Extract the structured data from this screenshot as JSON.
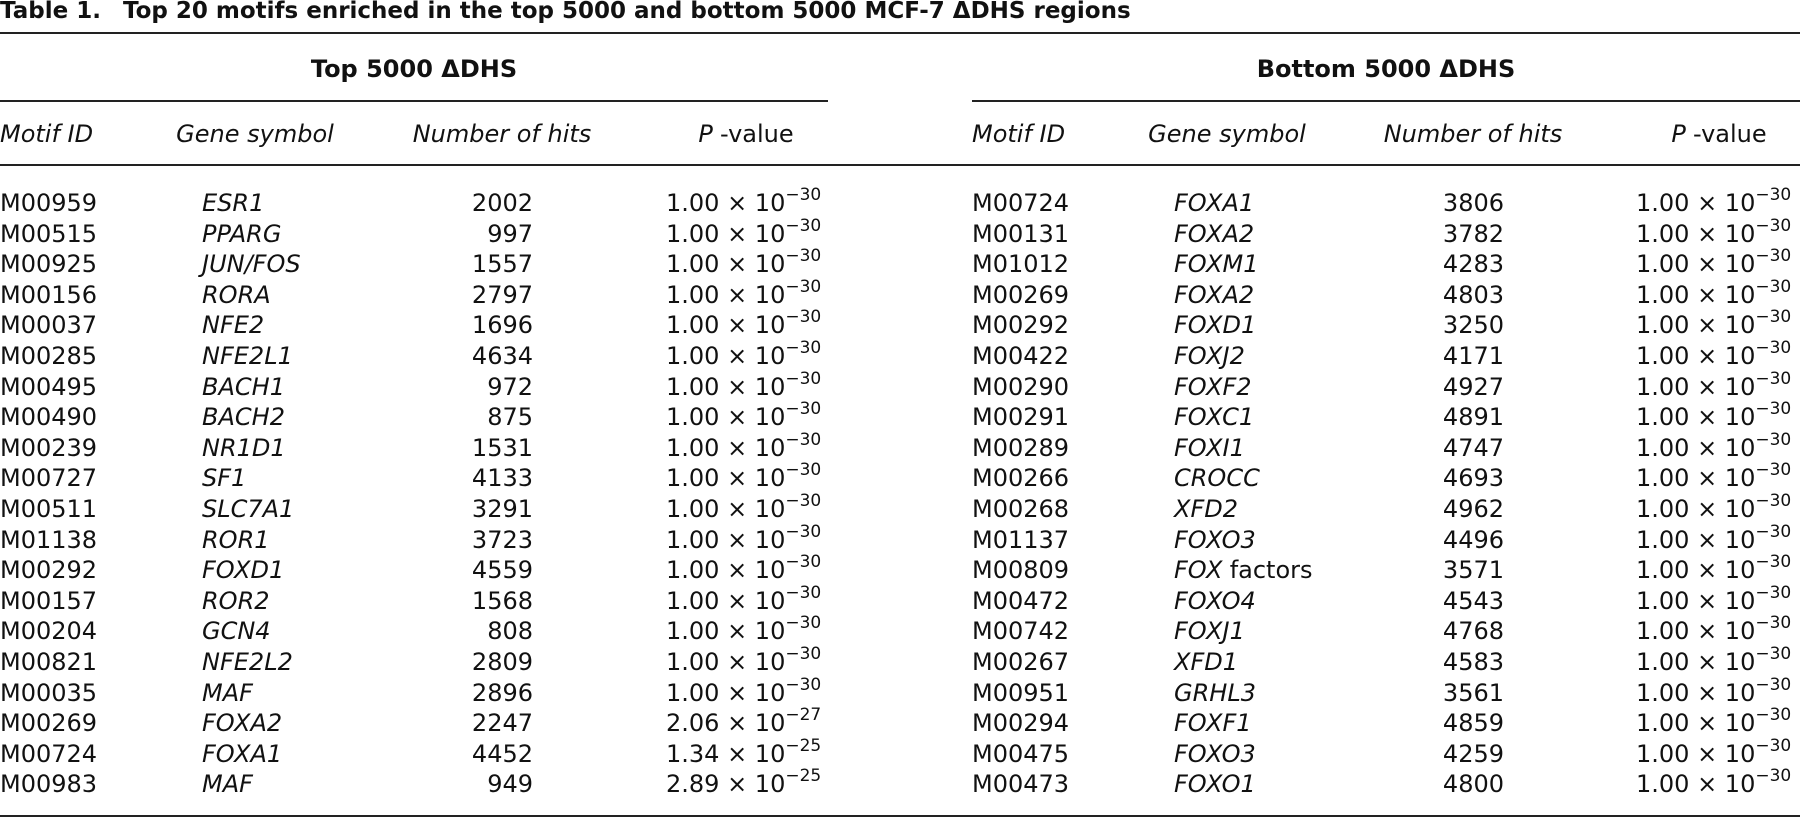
{
  "title": {
    "label": "Table 1.",
    "text": "Top 20 motifs enriched in the top 5000 and bottom 5000 MCF-7 ΔDHS regions"
  },
  "groups": [
    {
      "title": "Top 5000 ΔDHS",
      "columns": [
        "Motif ID",
        "Gene symbol",
        "Number of hits",
        [
          "P",
          "-value"
        ]
      ],
      "rows": [
        [
          "M00959",
          "ESR1",
          2002,
          "1.00 × 10",
          "−30"
        ],
        [
          "M00515",
          "PPARG",
          997,
          "1.00 × 10",
          "−30"
        ],
        [
          "M00925",
          "JUN/FOS",
          1557,
          "1.00 × 10",
          "−30"
        ],
        [
          "M00156",
          "RORA",
          2797,
          "1.00 × 10",
          "−30"
        ],
        [
          "M00037",
          "NFE2",
          1696,
          "1.00 × 10",
          "−30"
        ],
        [
          "M00285",
          "NFE2L1",
          4634,
          "1.00 × 10",
          "−30"
        ],
        [
          "M00495",
          "BACH1",
          972,
          "1.00 × 10",
          "−30"
        ],
        [
          "M00490",
          "BACH2",
          875,
          "1.00 × 10",
          "−30"
        ],
        [
          "M00239",
          "NR1D1",
          1531,
          "1.00 × 10",
          "−30"
        ],
        [
          "M00727",
          "SF1",
          4133,
          "1.00 × 10",
          "−30"
        ],
        [
          "M00511",
          "SLC7A1",
          3291,
          "1.00 × 10",
          "−30"
        ],
        [
          "M01138",
          "ROR1",
          3723,
          "1.00 × 10",
          "−30"
        ],
        [
          "M00292",
          "FOXD1",
          4559,
          "1.00 × 10",
          "−30"
        ],
        [
          "M00157",
          "ROR2",
          1568,
          "1.00 × 10",
          "−30"
        ],
        [
          "M00204",
          "GCN4",
          808,
          "1.00 × 10",
          "−30"
        ],
        [
          "M00821",
          "NFE2L2",
          2809,
          "1.00 × 10",
          "−30"
        ],
        [
          "M00035",
          "MAF",
          2896,
          "1.00 × 10",
          "−30"
        ],
        [
          "M00269",
          "FOXA2",
          2247,
          "2.06 × 10",
          "−27"
        ],
        [
          "M00724",
          "FOXA1",
          4452,
          "1.34 × 10",
          "−25"
        ],
        [
          "M00983",
          "MAF",
          949,
          "2.89 × 10",
          "−25"
        ]
      ]
    },
    {
      "title": "Bottom 5000 ΔDHS",
      "columns": [
        "Motif ID",
        "Gene symbol",
        "Number of hits",
        [
          "P",
          "-value"
        ]
      ],
      "rows": [
        [
          "M00724",
          "FOXA1",
          3806,
          "1.00 × 10",
          "−30"
        ],
        [
          "M00131",
          "FOXA2",
          3782,
          "1.00 × 10",
          "−30"
        ],
        [
          "M01012",
          "FOXM1",
          4283,
          "1.00 × 10",
          "−30"
        ],
        [
          "M00269",
          "FOXA2",
          4803,
          "1.00 × 10",
          "−30"
        ],
        [
          "M00292",
          "FOXD1",
          3250,
          "1.00 × 10",
          "−30"
        ],
        [
          "M00422",
          "FOXJ2",
          4171,
          "1.00 × 10",
          "−30"
        ],
        [
          "M00290",
          "FOXF2",
          4927,
          "1.00 × 10",
          "−30"
        ],
        [
          "M00291",
          "FOXC1",
          4891,
          "1.00 × 10",
          "−30"
        ],
        [
          "M00289",
          "FOXI1",
          4747,
          "1.00 × 10",
          "−30"
        ],
        [
          "M00266",
          "CROCC",
          4693,
          "1.00 × 10",
          "−30"
        ],
        [
          "M00268",
          "XFD2",
          4962,
          "1.00 × 10",
          "−30"
        ],
        [
          "M01137",
          "FOXO3",
          4496,
          "1.00 × 10",
          "−30"
        ],
        [
          "M00809",
          [
            "FOX",
            "factors"
          ],
          3571,
          "1.00 × 10",
          "−30"
        ],
        [
          "M00472",
          "FOXO4",
          4543,
          "1.00 × 10",
          "−30"
        ],
        [
          "M00742",
          "FOXJ1",
          4768,
          "1.00 × 10",
          "−30"
        ],
        [
          "M00267",
          "XFD1",
          4583,
          "1.00 × 10",
          "−30"
        ],
        [
          "M00951",
          "GRHL3",
          3561,
          "1.00 × 10",
          "−30"
        ],
        [
          "M00294",
          "FOXF1",
          4859,
          "1.00 × 10",
          "−30"
        ],
        [
          "M00475",
          "FOXO3",
          4259,
          "1.00 × 10",
          "−30"
        ],
        [
          "M00473",
          "FOXO1",
          4800,
          "1.00 × 10",
          "−30"
        ]
      ]
    }
  ]
}
